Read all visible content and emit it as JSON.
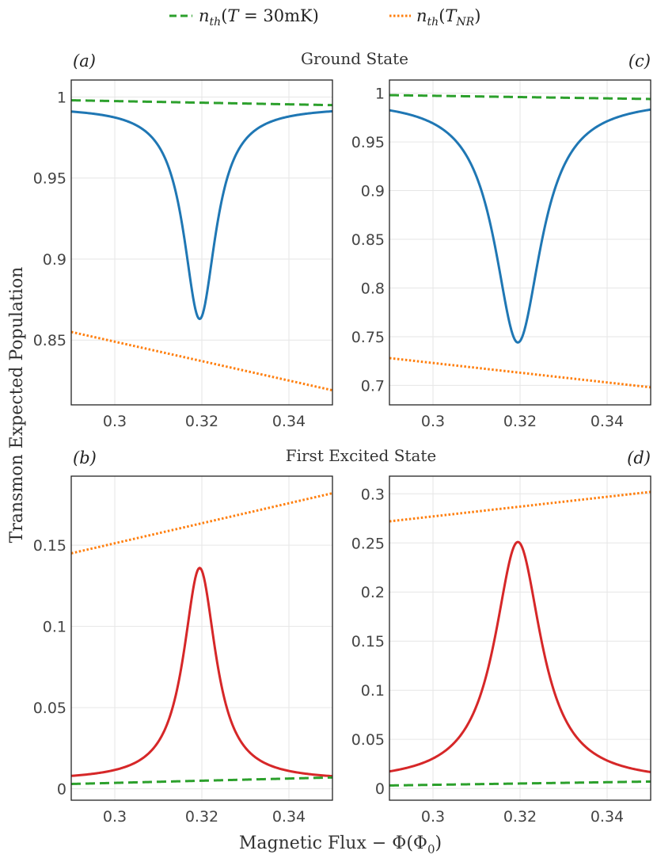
{
  "legend": {
    "green_label": "n_th(T = 30mK)",
    "orange_label": "n_th(T_NR)"
  },
  "titles": {
    "ground": "Ground State",
    "excited": "First Excited State"
  },
  "axis_labels": {
    "y": "Transmon Expected Population",
    "x": "Magnetic Flux  − Φ(Φ₀)"
  },
  "colors": {
    "blue": "#1f77b4",
    "red": "#d62728",
    "green": "#2ca02c",
    "orange": "#ff7f0e",
    "grid": "#e6e6e6"
  },
  "chart_data": [
    {
      "id": "a",
      "panel_label": "(a)",
      "type": "line",
      "xlim": [
        0.29,
        0.35
      ],
      "ylim": [
        0.81,
        1.0105
      ],
      "xticks": [
        0.3,
        0.32,
        0.34
      ],
      "xtick_labels": [
        "0.3",
        "0.32",
        "0.34"
      ],
      "yticks": [
        0.85,
        0.9,
        0.95,
        1
      ],
      "ytick_labels": [
        "0.85",
        "0.9",
        "0.95",
        "1"
      ],
      "series": [
        {
          "name": "population",
          "kind": "lorentz_dip",
          "color": "blue",
          "baseline": 0.994,
          "depth": 0.131,
          "center": 0.3195,
          "gamma": 0.0045
        },
        {
          "name": "n_th(T = 30mK)",
          "kind": "linear",
          "color": "green",
          "dash": "dashed",
          "y0": 0.998,
          "y1": 0.995
        },
        {
          "name": "n_th(T_NR)",
          "kind": "linear",
          "color": "orange",
          "dash": "dotted",
          "y0": 0.855,
          "y1": 0.819
        }
      ]
    },
    {
      "id": "b",
      "panel_label": "(b)",
      "type": "line",
      "xlim": [
        0.29,
        0.35
      ],
      "ylim": [
        -0.007,
        0.1925
      ],
      "xticks": [
        0.3,
        0.32,
        0.34
      ],
      "xtick_labels": [
        "0.3",
        "0.32",
        "0.34"
      ],
      "yticks": [
        0,
        0.05,
        0.1,
        0.15
      ],
      "ytick_labels": [
        "0",
        "0.05",
        "0.1",
        "0.15"
      ],
      "series": [
        {
          "name": "population",
          "kind": "lorentz_peak",
          "color": "red",
          "baseline": 0.005,
          "height": 0.131,
          "center": 0.3195,
          "gamma": 0.0045
        },
        {
          "name": "n_th(T = 30mK)",
          "kind": "linear",
          "color": "green",
          "dash": "dashed",
          "y0": 0.003,
          "y1": 0.007
        },
        {
          "name": "n_th(T_NR)",
          "kind": "linear",
          "color": "orange",
          "dash": "dotted",
          "y0": 0.145,
          "y1": 0.182
        }
      ]
    },
    {
      "id": "c",
      "panel_label": "(c)",
      "type": "line",
      "xlim": [
        0.29,
        0.35
      ],
      "ylim": [
        0.68,
        1.0135
      ],
      "xticks": [
        0.3,
        0.32,
        0.34
      ],
      "xtick_labels": [
        "0.3",
        "0.32",
        "0.34"
      ],
      "yticks": [
        0.7,
        0.75,
        0.8,
        0.85,
        0.9,
        0.95,
        1
      ],
      "ytick_labels": [
        "0.7",
        "0.75",
        "0.8",
        "0.85",
        "0.9",
        "0.95",
        "1"
      ],
      "series": [
        {
          "name": "population",
          "kind": "lorentz_dip",
          "color": "blue",
          "baseline": 0.994,
          "depth": 0.25,
          "center": 0.3195,
          "gamma": 0.0065
        },
        {
          "name": "n_th(T = 30mK)",
          "kind": "linear",
          "color": "green",
          "dash": "dashed",
          "y0": 0.998,
          "y1": 0.994
        },
        {
          "name": "n_th(T_NR)",
          "kind": "linear",
          "color": "orange",
          "dash": "dotted",
          "y0": 0.728,
          "y1": 0.698
        }
      ]
    },
    {
      "id": "d",
      "panel_label": "(d)",
      "type": "line",
      "xlim": [
        0.29,
        0.35
      ],
      "ylim": [
        -0.012,
        0.318
      ],
      "xticks": [
        0.3,
        0.32,
        0.34
      ],
      "xtick_labels": [
        "0.3",
        "0.32",
        "0.34"
      ],
      "yticks": [
        0,
        0.05,
        0.1,
        0.15,
        0.2,
        0.25,
        0.3
      ],
      "ytick_labels": [
        "0",
        "0.05",
        "0.1",
        "0.15",
        "0.2",
        "0.25",
        "0.3"
      ],
      "series": [
        {
          "name": "population",
          "kind": "lorentz_peak",
          "color": "red",
          "baseline": 0.006,
          "height": 0.245,
          "center": 0.3195,
          "gamma": 0.0065
        },
        {
          "name": "n_th(T = 30mK)",
          "kind": "linear",
          "color": "green",
          "dash": "dashed",
          "y0": 0.003,
          "y1": 0.007
        },
        {
          "name": "n_th(T_NR)",
          "kind": "linear",
          "color": "orange",
          "dash": "dotted",
          "y0": 0.272,
          "y1": 0.302
        }
      ]
    }
  ]
}
